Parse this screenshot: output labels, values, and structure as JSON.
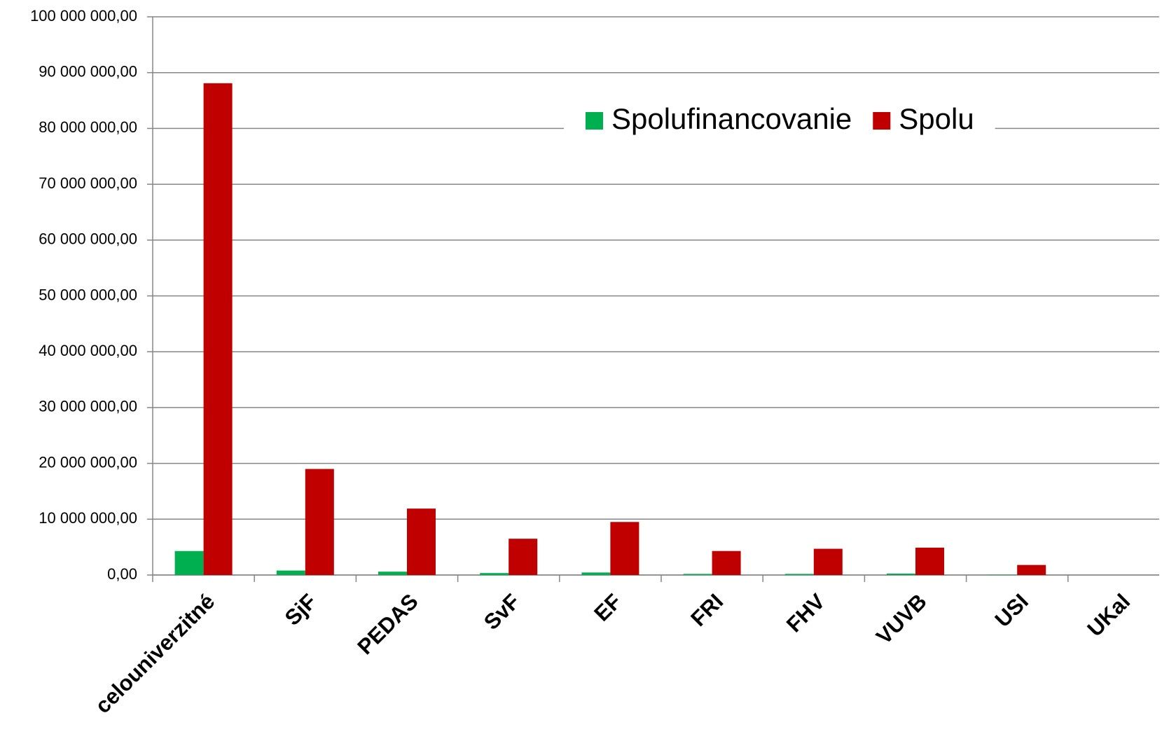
{
  "chart_data": {
    "type": "bar",
    "categories": [
      "celouniverzitné",
      "SjF",
      "PEDAS",
      "SvF",
      "EF",
      "FRI",
      "FHV",
      "VUVB",
      "USI",
      "UKal"
    ],
    "series": [
      {
        "name": "Spolufinancovanie",
        "color": "#00b050",
        "values": [
          4300000,
          800000,
          600000,
          350000,
          450000,
          200000,
          200000,
          250000,
          50000,
          0
        ]
      },
      {
        "name": "Spolu",
        "color": "#c00000",
        "values": [
          88100000,
          19000000,
          11900000,
          6500000,
          9500000,
          4300000,
          4700000,
          4900000,
          1800000,
          0
        ]
      }
    ],
    "ylim": [
      0,
      100000000
    ],
    "yticks": [
      {
        "value": 0,
        "label": "0,00"
      },
      {
        "value": 10000000,
        "label": "10 000 000,00"
      },
      {
        "value": 20000000,
        "label": "20 000 000,00"
      },
      {
        "value": 30000000,
        "label": "30 000 000,00"
      },
      {
        "value": 40000000,
        "label": "40 000 000,00"
      },
      {
        "value": 50000000,
        "label": "50 000 000,00"
      },
      {
        "value": 60000000,
        "label": "60 000 000,00"
      },
      {
        "value": 70000000,
        "label": "70 000 000,00"
      },
      {
        "value": 80000000,
        "label": "80 000 000,00"
      },
      {
        "value": 90000000,
        "label": "90 000 000,00"
      },
      {
        "value": 100000000,
        "label": "100 000 000,00"
      }
    ],
    "grid": true,
    "legend": "top-right"
  }
}
